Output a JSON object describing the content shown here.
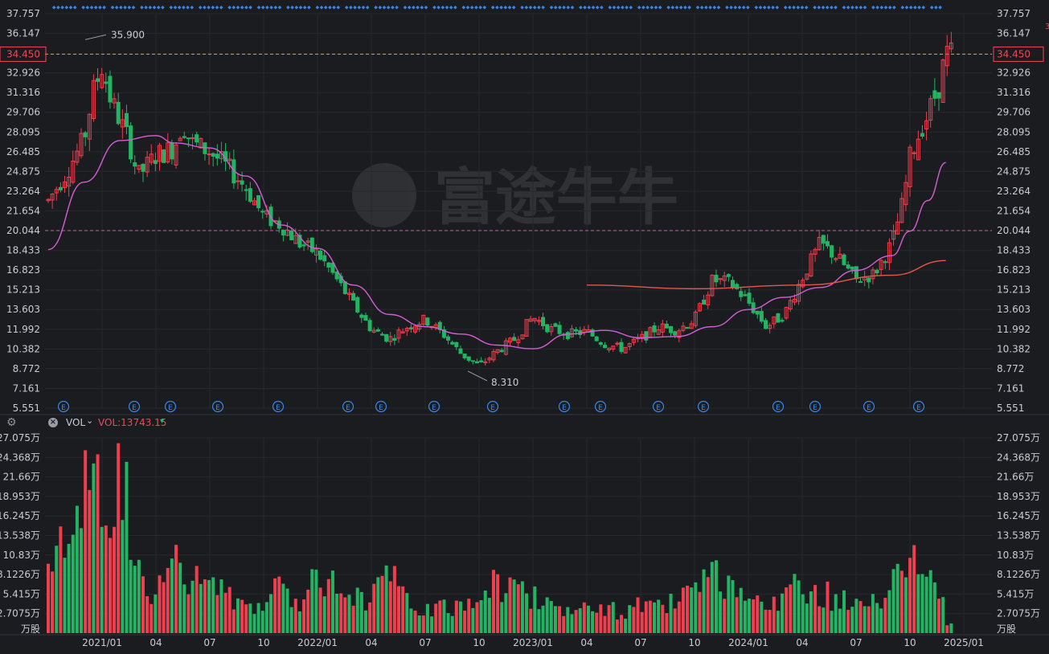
{
  "colors": {
    "background": "#1b1c20",
    "up": "#ef3e4e",
    "down": "#22b463",
    "ma_short": "#d55fd2",
    "ma_long": "#e4574c",
    "axis_text": "#c9ccd2",
    "grid": "#26282d",
    "last_price_line": "#f0a030",
    "last_price_label": "#f0465a",
    "ref_line": "#d05aa8",
    "event_marker": "#3a86e8"
  },
  "watermark": "富途牛牛",
  "price_axis": {
    "ticks": [
      "37.757",
      "36.147",
      "34.450",
      "32.926",
      "31.316",
      "29.706",
      "28.095",
      "26.485",
      "24.875",
      "23.264",
      "21.654",
      "20.044",
      "18.433",
      "16.823",
      "15.213",
      "13.603",
      "11.992",
      "10.382",
      "8.772",
      "7.161",
      "5.551"
    ],
    "last_price": "34.450",
    "reference_price": "20.044"
  },
  "annotations": {
    "high_label": "35.900",
    "low_label": "8.310"
  },
  "event_marker_label": "E",
  "volume_axis": {
    "ticks": [
      "27.075万",
      "24.368万",
      "21.66万",
      "18.953万",
      "16.245万",
      "13.538万",
      "10.83万",
      "8.1226万",
      "5.415万",
      "2.7075万"
    ],
    "unit_label": "万股"
  },
  "volume_toolbar": {
    "indicator": "VOL",
    "value": "VOL:13743.15"
  },
  "x_axis": {
    "labels": [
      "2021/01",
      "04",
      "07",
      "10",
      "2022/01",
      "04",
      "07",
      "10",
      "2023/01",
      "04",
      "07",
      "10",
      "2024/01",
      "04",
      "07",
      "10",
      "2025/01"
    ]
  },
  "chart_data": {
    "type": "candlestick",
    "title": "",
    "frequency": "weekly",
    "price_range": [
      5.551,
      37.757
    ],
    "volume_range_wan": [
      0,
      27.075
    ],
    "x_labels": [
      "2021/01",
      "04",
      "07",
      "10",
      "2022/01",
      "04",
      "07",
      "10",
      "2023/01",
      "04",
      "07",
      "10",
      "2024/01",
      "04",
      "07",
      "10",
      "2025/01"
    ],
    "close_series": [
      {
        "date": "2020-10",
        "close": 22.5
      },
      {
        "date": "2020-11",
        "close": 24.8
      },
      {
        "date": "2020-12-01",
        "close": 27.5
      },
      {
        "date": "2020-12-15",
        "close": 31.2
      },
      {
        "date": "2021-01",
        "close": 33.5
      },
      {
        "date": "2021-01-15",
        "close": 30.8
      },
      {
        "date": "2021-02",
        "close": 29.0
      },
      {
        "date": "2021-02-15",
        "close": 27.5
      },
      {
        "date": "2021-03",
        "close": 24.5
      },
      {
        "date": "2021-04",
        "close": 26.2
      },
      {
        "date": "2021-05",
        "close": 26.8
      },
      {
        "date": "2021-05-15",
        "close": 28.8
      },
      {
        "date": "2021-06",
        "close": 27.2
      },
      {
        "date": "2021-07",
        "close": 26.5
      },
      {
        "date": "2021-08",
        "close": 25.2
      },
      {
        "date": "2021-09",
        "close": 23.6
      },
      {
        "date": "2021-10",
        "close": 21.2
      },
      {
        "date": "2021-11",
        "close": 20.5
      },
      {
        "date": "2021-12",
        "close": 19.0
      },
      {
        "date": "2022-01",
        "close": 18.2
      },
      {
        "date": "2022-02",
        "close": 16.2
      },
      {
        "date": "2022-03",
        "close": 14.0
      },
      {
        "date": "2022-04",
        "close": 12.0
      },
      {
        "date": "2022-05",
        "close": 11.2
      },
      {
        "date": "2022-06",
        "close": 12.2
      },
      {
        "date": "2022-07",
        "close": 12.8
      },
      {
        "date": "2022-08",
        "close": 11.6
      },
      {
        "date": "2022-09",
        "close": 10.0
      },
      {
        "date": "2022-10",
        "close": 9.0
      },
      {
        "date": "2022-11",
        "close": 10.2
      },
      {
        "date": "2022-12",
        "close": 11.2
      },
      {
        "date": "2023-01",
        "close": 13.0
      },
      {
        "date": "2023-02",
        "close": 12.0
      },
      {
        "date": "2023-03",
        "close": 11.6
      },
      {
        "date": "2023-04",
        "close": 11.8
      },
      {
        "date": "2023-05",
        "close": 10.8
      },
      {
        "date": "2023-06",
        "close": 10.4
      },
      {
        "date": "2023-07",
        "close": 11.2
      },
      {
        "date": "2023-08",
        "close": 12.2
      },
      {
        "date": "2023-09",
        "close": 11.9
      },
      {
        "date": "2023-10",
        "close": 12.8
      },
      {
        "date": "2023-11",
        "close": 16.0
      },
      {
        "date": "2023-12",
        "close": 15.8
      },
      {
        "date": "2024-01",
        "close": 14.2
      },
      {
        "date": "2024-02",
        "close": 12.2
      },
      {
        "date": "2024-03",
        "close": 13.2
      },
      {
        "date": "2024-04",
        "close": 16.2
      },
      {
        "date": "2024-05",
        "close": 19.0
      },
      {
        "date": "2024-06",
        "close": 17.8
      },
      {
        "date": "2024-07",
        "close": 16.0
      },
      {
        "date": "2024-08",
        "close": 16.5
      },
      {
        "date": "2024-09",
        "close": 19.0
      },
      {
        "date": "2024-09-20",
        "close": 22.5
      },
      {
        "date": "2024-10",
        "close": 26.0
      },
      {
        "date": "2024-10-20",
        "close": 28.5
      },
      {
        "date": "2024-11",
        "close": 29.5
      },
      {
        "date": "2024-11-20",
        "close": 32.0
      },
      {
        "date": "2024-12",
        "close": 34.45
      }
    ],
    "volume_wan": [
      {
        "date": "2020-10",
        "volume": 10.9
      },
      {
        "date": "2020-11",
        "volume": 12.2
      },
      {
        "date": "2020-12",
        "volume": 24.3
      },
      {
        "date": "2021-01",
        "volume": 18.5
      },
      {
        "date": "2021-02",
        "volume": 25.0
      },
      {
        "date": "2021-03",
        "volume": 11.5
      },
      {
        "date": "2021-04",
        "volume": 5.5
      },
      {
        "date": "2021-05",
        "volume": 10.5
      },
      {
        "date": "2021-06",
        "volume": 7.2
      },
      {
        "date": "2021-07",
        "volume": 8.8
      },
      {
        "date": "2021-08",
        "volume": 5.2
      },
      {
        "date": "2021-09",
        "volume": 4.8
      },
      {
        "date": "2021-10",
        "volume": 4.2
      },
      {
        "date": "2021-11",
        "volume": 7.0
      },
      {
        "date": "2021-12",
        "volume": 4.5
      },
      {
        "date": "2022-01",
        "volume": 10.6
      },
      {
        "date": "2022-02",
        "volume": 7.2
      },
      {
        "date": "2022-03",
        "volume": 5.2
      },
      {
        "date": "2022-04",
        "volume": 5.8
      },
      {
        "date": "2022-05",
        "volume": 9.5
      },
      {
        "date": "2022-06",
        "volume": 4.2
      },
      {
        "date": "2022-07",
        "volume": 4.0
      },
      {
        "date": "2022-08",
        "volume": 3.6
      },
      {
        "date": "2022-09",
        "volume": 4.0
      },
      {
        "date": "2022-10",
        "volume": 6.2
      },
      {
        "date": "2022-11",
        "volume": 8.0
      },
      {
        "date": "2022-12",
        "volume": 6.4
      },
      {
        "date": "2023-01",
        "volume": 5.8
      },
      {
        "date": "2023-02",
        "volume": 4.4
      },
      {
        "date": "2023-03",
        "volume": 3.8
      },
      {
        "date": "2023-04",
        "volume": 3.6
      },
      {
        "date": "2023-05",
        "volume": 3.2
      },
      {
        "date": "2023-06",
        "volume": 3.5
      },
      {
        "date": "2023-07",
        "volume": 4.0
      },
      {
        "date": "2023-08",
        "volume": 3.8
      },
      {
        "date": "2023-09",
        "volume": 4.6
      },
      {
        "date": "2023-10",
        "volume": 6.0
      },
      {
        "date": "2023-11",
        "volume": 8.4
      },
      {
        "date": "2023-12",
        "volume": 6.0
      },
      {
        "date": "2024-01",
        "volume": 4.6
      },
      {
        "date": "2024-02",
        "volume": 3.6
      },
      {
        "date": "2024-03",
        "volume": 5.5
      },
      {
        "date": "2024-04",
        "volume": 7.8
      },
      {
        "date": "2024-05",
        "volume": 6.2
      },
      {
        "date": "2024-06",
        "volume": 5.0
      },
      {
        "date": "2024-07",
        "volume": 4.4
      },
      {
        "date": "2024-08",
        "volume": 4.2
      },
      {
        "date": "2024-09",
        "volume": 8.0
      },
      {
        "date": "2024-09-20",
        "volume": 13.7
      },
      {
        "date": "2024-10",
        "volume": 10.8
      },
      {
        "date": "2024-10-20",
        "volume": 8.4
      },
      {
        "date": "2024-11",
        "volume": 7.9
      },
      {
        "date": "2024-11-20",
        "volume": 7.2
      },
      {
        "date": "2024-12",
        "volume": 1.3
      }
    ],
    "moving_averages": [
      {
        "name": "MA-short",
        "values": [
          {
            "date": "2020-10",
            "value": 18.5
          },
          {
            "date": "2020-12",
            "value": 24.0
          },
          {
            "date": "2021-02",
            "value": 27.4
          },
          {
            "date": "2021-04",
            "value": 27.8
          },
          {
            "date": "2021-05",
            "value": 27.2
          },
          {
            "date": "2021-07",
            "value": 26.8
          },
          {
            "date": "2021-09",
            "value": 24.5
          },
          {
            "date": "2021-11",
            "value": 20.5
          },
          {
            "date": "2022-01",
            "value": 18.6
          },
          {
            "date": "2022-03",
            "value": 15.6
          },
          {
            "date": "2022-05",
            "value": 13.2
          },
          {
            "date": "2022-07",
            "value": 12.2
          },
          {
            "date": "2022-09",
            "value": 11.6
          },
          {
            "date": "2022-11",
            "value": 10.7
          },
          {
            "date": "2023-01",
            "value": 10.4
          },
          {
            "date": "2023-03",
            "value": 11.6
          },
          {
            "date": "2023-05",
            "value": 11.9
          },
          {
            "date": "2023-07",
            "value": 11.3
          },
          {
            "date": "2023-09",
            "value": 11.4
          },
          {
            "date": "2023-11",
            "value": 12.2
          },
          {
            "date": "2024-01",
            "value": 13.6
          },
          {
            "date": "2024-03",
            "value": 14.6
          },
          {
            "date": "2024-05",
            "value": 15.4
          },
          {
            "date": "2024-07",
            "value": 16.8
          },
          {
            "date": "2024-09",
            "value": 18.0
          },
          {
            "date": "2024-10",
            "value": 20.0
          },
          {
            "date": "2024-11",
            "value": 22.5
          },
          {
            "date": "2024-12",
            "value": 25.6
          }
        ]
      },
      {
        "name": "MA-long",
        "values": [
          {
            "date": "2023-04",
            "value": 15.6
          },
          {
            "date": "2023-10",
            "value": 15.3
          },
          {
            "date": "2024-04",
            "value": 15.6
          },
          {
            "date": "2024-09",
            "value": 16.4
          },
          {
            "date": "2024-12",
            "value": 17.6
          }
        ]
      }
    ]
  }
}
